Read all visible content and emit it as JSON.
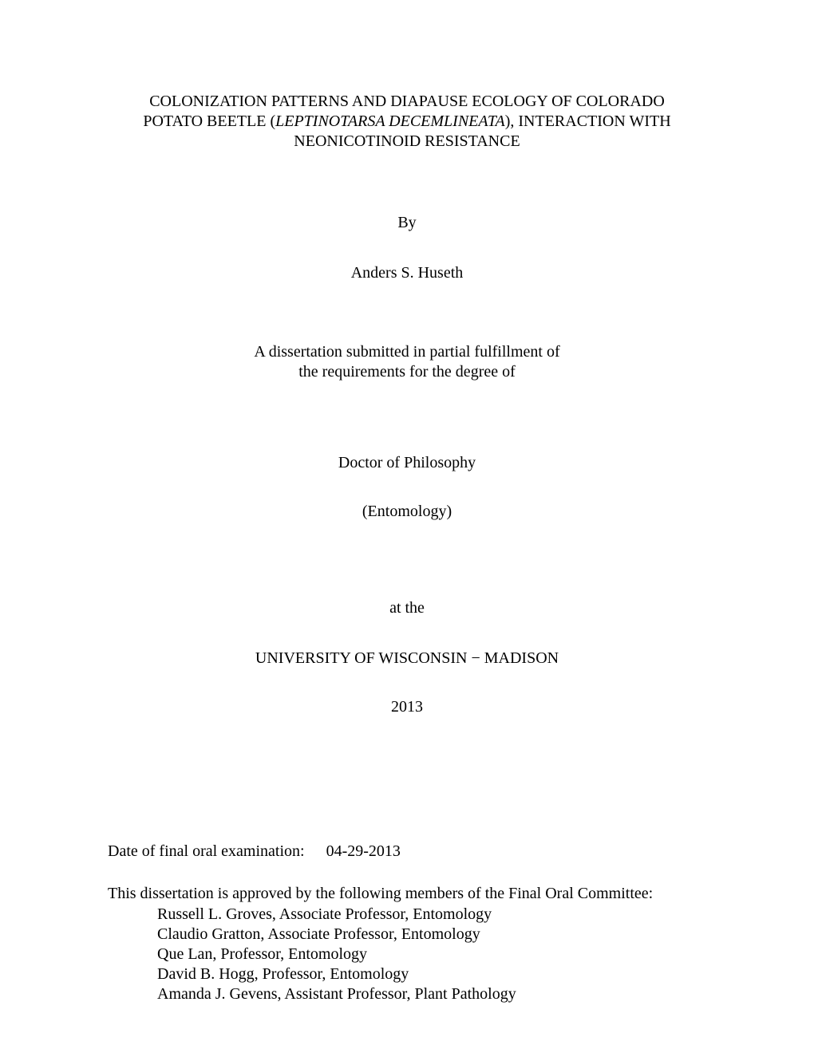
{
  "title": {
    "line1": "COLONIZATION PATTERNS AND DIAPAUSE ECOLOGY OF COLORADO",
    "line2_pre": "POTATO BEETLE (",
    "line2_italic": "LEPTINOTARSA DECEMLINEATA",
    "line2_post": "), INTERACTION WITH",
    "line3": "NEONICOTINOID RESISTANCE"
  },
  "by_label": "By",
  "author": "Anders S. Huseth",
  "submission": {
    "line1": "A dissertation submitted in partial fulfillment of",
    "line2": "the requirements for the degree of"
  },
  "degree": "Doctor of Philosophy",
  "field": "(Entomology)",
  "at_the": "at the",
  "university": "UNIVERSITY OF WISCONSIN − MADISON",
  "year": "2013",
  "exam_date_label": "Date of final oral examination:",
  "exam_date_value": "04-29-2013",
  "approval_text": "This dissertation is approved by the following members of the Final Oral Committee:",
  "committee": [
    "Russell L. Groves, Associate Professor, Entomology",
    "Claudio Gratton, Associate Professor, Entomology",
    "Que Lan, Professor, Entomology",
    "David B. Hogg, Professor, Entomology",
    "Amanda J. Gevens, Assistant Professor, Plant Pathology"
  ]
}
